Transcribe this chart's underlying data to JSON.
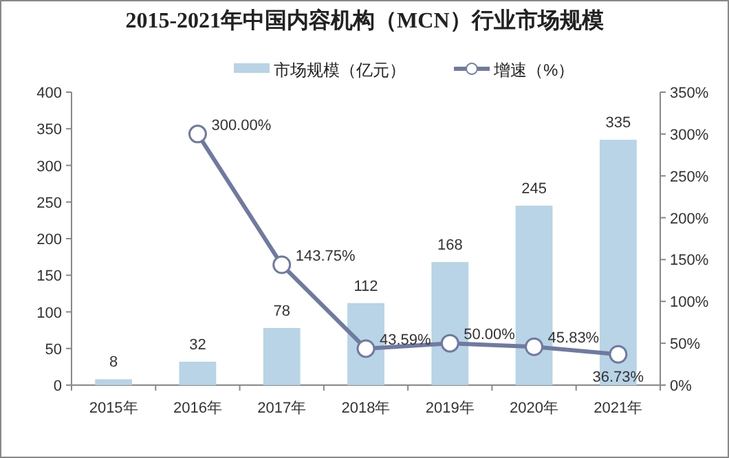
{
  "chart_data": {
    "type": "bar",
    "title": "2015-2021年中国内容机构（MCN）行业市场规模",
    "categories": [
      "2015年",
      "2016年",
      "2017年",
      "2018年",
      "2019年",
      "2020年",
      "2021年"
    ],
    "series": [
      {
        "name": "市场规模（亿元）",
        "color": "#b8d4e6",
        "values": [
          8,
          32,
          78,
          112,
          168,
          245,
          335
        ]
      },
      {
        "name": "增速（%）",
        "type": "line",
        "axis": "y2",
        "color": "#6f7aa0",
        "marker": "circle",
        "values": [
          null,
          300,
          143.75,
          43.59,
          50,
          45.83,
          36.73
        ],
        "value_labels": [
          null,
          "300.00%",
          "143.75%",
          "43.59%",
          "50.00%",
          "45.83%",
          "36.73%"
        ]
      }
    ],
    "data_labels": true,
    "ylim": [
      0,
      400
    ],
    "yticks": [
      0,
      50,
      100,
      150,
      200,
      250,
      300,
      350,
      400
    ],
    "y2lim": [
      0,
      350
    ],
    "y2ticks": [
      {
        "value": 0,
        "label": "0%"
      },
      {
        "value": 50,
        "label": "50%"
      },
      {
        "value": 100,
        "label": "100%"
      },
      {
        "value": 150,
        "label": "150%"
      },
      {
        "value": 200,
        "label": "200%"
      },
      {
        "value": 250,
        "label": "250%"
      },
      {
        "value": 300,
        "label": "300%"
      },
      {
        "value": 350,
        "label": "350%"
      }
    ],
    "grid": false,
    "legend": "top"
  }
}
